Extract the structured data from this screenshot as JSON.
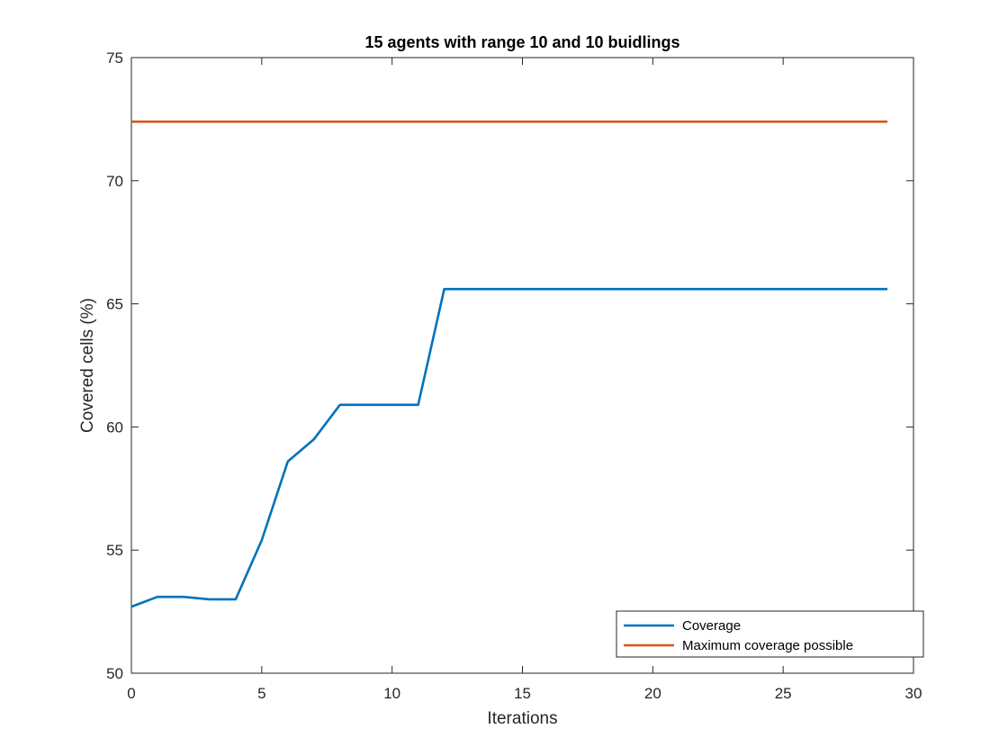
{
  "chart_data": {
    "type": "line",
    "title": "15 agents with range 10 and 10 buidlings",
    "xlabel": "Iterations",
    "ylabel": "Covered cells (%)",
    "xlim": [
      0,
      30
    ],
    "ylim": [
      50,
      75
    ],
    "xticks": [
      0,
      5,
      10,
      15,
      20,
      25,
      30
    ],
    "yticks": [
      50,
      55,
      60,
      65,
      70,
      75
    ],
    "grid": false,
    "legend_position": "bottom-right",
    "series": [
      {
        "name": "Coverage",
        "color": "#0072BD",
        "x": [
          0,
          1,
          2,
          3,
          4,
          5,
          6,
          7,
          8,
          9,
          10,
          11,
          12,
          13,
          14,
          15,
          16,
          17,
          18,
          19,
          20,
          21,
          22,
          23,
          24,
          25,
          26,
          27,
          28,
          29
        ],
        "y": [
          52.7,
          53.1,
          53.1,
          53.0,
          53.0,
          55.4,
          58.6,
          59.5,
          60.9,
          60.9,
          60.9,
          60.9,
          65.6,
          65.6,
          65.6,
          65.6,
          65.6,
          65.6,
          65.6,
          65.6,
          65.6,
          65.6,
          65.6,
          65.6,
          65.6,
          65.6,
          65.6,
          65.6,
          65.6,
          65.6
        ]
      },
      {
        "name": "Maximum coverage possible",
        "color": "#D95319",
        "x": [
          0,
          29
        ],
        "y": [
          72.4,
          72.4
        ]
      }
    ]
  }
}
